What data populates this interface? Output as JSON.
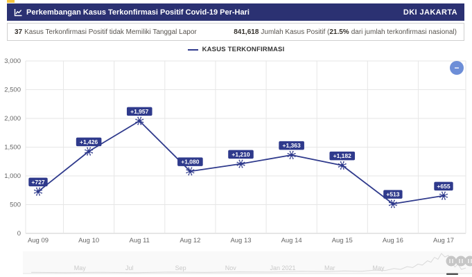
{
  "header": {
    "title": "Perkembangan Kasus Terkonfirmasi Positif Covid-19 Per-Hari",
    "region": "DKI JAKARTA",
    "bg_color": "#2b3172",
    "icon": "line-chart-icon"
  },
  "stats": {
    "left_value": "37",
    "left_label": "Kasus Terkonfirmasi Positif tidak Memiliki Tanggal Lapor",
    "right_value": "841,618",
    "right_label": "Jumlah Kasus Positif (",
    "right_pct": "21.5%",
    "right_tail": "dari jumlah terkonfirmasi nasional)"
  },
  "legend": {
    "label": "KASUS TERKONFIRMASI"
  },
  "chart_data": {
    "type": "line",
    "title": "",
    "categories": [
      "Aug 09",
      "Aug 10",
      "Aug 11",
      "Aug 12",
      "Aug 13",
      "Aug 14",
      "Aug 15",
      "Aug 16",
      "Aug 17"
    ],
    "series": [
      {
        "name": "KASUS TERKONFIRMASI",
        "values": [
          727,
          1426,
          1957,
          1080,
          1210,
          1363,
          1182,
          513,
          655
        ],
        "labels": [
          "+727",
          "+1,426",
          "+1,957",
          "+1,080",
          "+1,210",
          "+1,363",
          "+1,182",
          "+513",
          "+655"
        ],
        "color": "#2f3a8c",
        "marker": "virus-icon"
      }
    ],
    "ylim": [
      0,
      3000
    ],
    "yticks": [
      {
        "value": 0,
        "label": "0"
      },
      {
        "value": 500,
        "label": "500"
      },
      {
        "value": 1000,
        "label": "1,000"
      },
      {
        "value": 1500,
        "label": "1,500"
      },
      {
        "value": 2000,
        "label": "2,000"
      },
      {
        "value": 2500,
        "label": "2,500"
      },
      {
        "value": 3000,
        "label": "3,000"
      }
    ],
    "grid": true,
    "legend_position": "top-center"
  },
  "navigator": {
    "months": [
      "May",
      "Jul",
      "Sep",
      "Nov",
      "Jan 2021",
      "Mar",
      "May"
    ],
    "month_fractions": [
      0.112,
      0.226,
      0.344,
      0.459,
      0.579,
      0.687,
      0.799
    ],
    "sparkline": [
      [
        0,
        0.03
      ],
      [
        0.08,
        0.01
      ],
      [
        0.16,
        0.03
      ],
      [
        0.24,
        0.01
      ],
      [
        0.32,
        0.04
      ],
      [
        0.4,
        0.02
      ],
      [
        0.48,
        0.05
      ],
      [
        0.55,
        0.04
      ],
      [
        0.62,
        0.08
      ],
      [
        0.68,
        0.06
      ],
      [
        0.72,
        0.1
      ],
      [
        0.76,
        0.08
      ],
      [
        0.79,
        0.14
      ],
      [
        0.815,
        0.12
      ],
      [
        0.835,
        0.22
      ],
      [
        0.85,
        0.18
      ],
      [
        0.865,
        0.32
      ],
      [
        0.878,
        0.27
      ],
      [
        0.89,
        0.45
      ],
      [
        0.9,
        0.4
      ],
      [
        0.912,
        0.62
      ],
      [
        0.92,
        0.55
      ],
      [
        0.928,
        0.8
      ],
      [
        0.936,
        0.7
      ],
      [
        0.944,
        1.0
      ],
      [
        0.952,
        0.82
      ],
      [
        0.96,
        0.9
      ],
      [
        0.968,
        0.55
      ],
      [
        0.975,
        0.3
      ],
      [
        0.982,
        0.45
      ],
      [
        0.99,
        0.18
      ],
      [
        1,
        0.25
      ]
    ]
  },
  "zoom_button": {
    "symbol": "−",
    "color": "#6d8ed7"
  },
  "colors": {
    "grid": "#e6e6e6",
    "axis_line": "#cccccc",
    "tick_text": "#666666",
    "nav_text": "#c9c9c9",
    "nav_line": "#d9d9d9"
  }
}
